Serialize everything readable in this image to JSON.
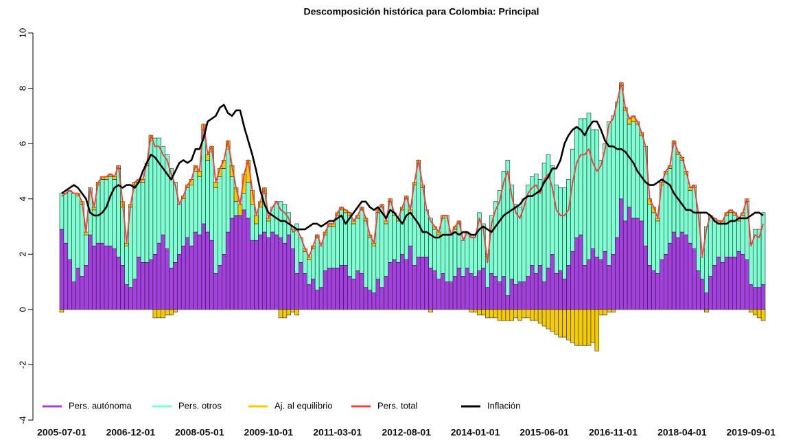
{
  "chart_data": {
    "type": "bar",
    "stacked": true,
    "title": "Descomposición histórica para Colombia: Principal",
    "categories": [
      "2005-07-01",
      null,
      null,
      null,
      null,
      null,
      null,
      null,
      null,
      null,
      null,
      null,
      null,
      null,
      null,
      null,
      null,
      "2006-12-01",
      null,
      null,
      null,
      null,
      null,
      null,
      null,
      null,
      null,
      null,
      null,
      null,
      null,
      null,
      null,
      null,
      "2008-05-01",
      null,
      null,
      null,
      null,
      null,
      null,
      null,
      null,
      null,
      null,
      null,
      null,
      null,
      null,
      null,
      null,
      "2009-10-01",
      null,
      null,
      null,
      null,
      null,
      null,
      null,
      null,
      null,
      null,
      null,
      null,
      null,
      null,
      null,
      null,
      "2011-03-01",
      null,
      null,
      null,
      null,
      null,
      null,
      null,
      null,
      null,
      null,
      null,
      null,
      null,
      null,
      null,
      null,
      "2012-08-01",
      null,
      null,
      null,
      null,
      null,
      null,
      null,
      null,
      null,
      null,
      null,
      null,
      null,
      null,
      null,
      null,
      "2014-01-01",
      null,
      null,
      null,
      null,
      null,
      null,
      null,
      null,
      null,
      null,
      null,
      null,
      null,
      null,
      null,
      null,
      "2015-06-01",
      null,
      null,
      null,
      null,
      null,
      null,
      null,
      null,
      null,
      null,
      null,
      null,
      null,
      null,
      null,
      null,
      "2016-11-01",
      null,
      null,
      null,
      null,
      null,
      null,
      null,
      null,
      null,
      null,
      null,
      null,
      null,
      null,
      null,
      null,
      "2018-04-01",
      null,
      null,
      null,
      null,
      null,
      null,
      null,
      null,
      null,
      null,
      null,
      null,
      null,
      null,
      null,
      null,
      "2019-09-01",
      null,
      null,
      null
    ],
    "ylim": [
      -4,
      10
    ],
    "yticks": [
      -4,
      -2,
      0,
      2,
      4,
      6,
      8,
      10
    ],
    "grid": false,
    "legend": "bottomleft",
    "series": [
      {
        "name": "Pers. autónoma",
        "type": "bar",
        "color": "#a43fe0",
        "values": [
          2.9,
          2.4,
          1.8,
          1.0,
          1.5,
          1.2,
          1.6,
          2.7,
          2.3,
          2.4,
          2.4,
          2.3,
          2.3,
          2.2,
          1.9,
          1.6,
          0.9,
          0.8,
          1.1,
          1.9,
          1.7,
          1.7,
          1.8,
          2.0,
          2.4,
          2.7,
          2.2,
          1.5,
          1.7,
          2.0,
          2.3,
          2.6,
          2.3,
          2.8,
          2.7,
          3.1,
          2.8,
          2.5,
          1.3,
          1.6,
          2.0,
          2.8,
          3.3,
          3.4,
          3.4,
          3.6,
          3.3,
          2.5,
          2.5,
          2.7,
          2.8,
          2.6,
          2.8,
          2.7,
          2.6,
          2.4,
          2.7,
          2.2,
          1.3,
          1.7,
          1.3,
          0.9,
          1.1,
          0.7,
          0.8,
          1.4,
          1.5,
          1.5,
          1.5,
          1.6,
          1.6,
          1.2,
          1.1,
          1.4,
          1.3,
          0.8,
          0.7,
          0.6,
          1.1,
          0.8,
          1.2,
          1.7,
          1.8,
          1.7,
          2.0,
          1.8,
          2.3,
          1.6,
          1.9,
          1.9,
          1.9,
          1.5,
          1.4,
          1.1,
          1.3,
          1.0,
          1.0,
          1.2,
          1.5,
          1.2,
          1.5,
          1.3,
          1.2,
          1.4,
          1.5,
          0.8,
          1.3,
          1.2,
          1.0,
          1.2,
          0.5,
          1.1,
          0.9,
          1.0,
          1.0,
          1.2,
          1.6,
          1.3,
          1.6,
          1.0,
          1.5,
          2.0,
          1.3,
          1.4,
          1.1,
          1.6,
          2.1,
          2.6,
          2.7,
          1.6,
          1.8,
          2.2,
          1.9,
          1.8,
          2.1,
          1.6,
          2.0,
          2.6,
          4.0,
          3.2,
          3.7,
          3.3,
          3.3,
          3.2,
          2.3,
          1.6,
          1.4,
          1.3,
          1.8,
          2.0,
          2.4,
          2.8,
          2.6,
          2.8,
          2.7,
          2.4,
          2.2,
          1.4,
          1.1,
          0.6,
          1.2,
          1.6,
          1.9,
          1.7,
          1.9,
          1.9,
          1.9,
          2.1,
          2.0,
          1.8,
          0.9,
          0.8,
          0.8,
          0.9
        ]
      },
      {
        "name": "Pers. otros",
        "type": "bar",
        "color": "#7fffd4",
        "values": [
          1.3,
          1.8,
          2.5,
          3.2,
          2.6,
          2.6,
          1.1,
          1.7,
          1.3,
          2.1,
          2.3,
          2.4,
          2.5,
          2.5,
          3.2,
          2.1,
          1.4,
          2.9,
          3.4,
          2.7,
          2.9,
          3.5,
          4.3,
          4.2,
          3.8,
          3.2,
          3.4,
          3.6,
          2.9,
          1.8,
          1.7,
          1.8,
          2.2,
          2.2,
          2.1,
          3.4,
          2.6,
          3.2,
          3.1,
          3.2,
          3.1,
          3.0,
          1.5,
          0.5,
          0.0,
          0.6,
          1.3,
          1.3,
          0.6,
          1.0,
          1.4,
          0.6,
          0.9,
          1.2,
          1.3,
          1.4,
          0.8,
          0.7,
          1.8,
          0.9,
          0.8,
          0.9,
          1.1,
          1.9,
          1.5,
          1.3,
          1.5,
          1.5,
          1.9,
          2.0,
          1.9,
          2.2,
          2.0,
          1.9,
          2.3,
          2.4,
          1.9,
          1.7,
          2.4,
          2.9,
          1.9,
          2.2,
          1.6,
          1.5,
          1.6,
          2.2,
          1.2,
          2.9,
          3.4,
          2.5,
          1.7,
          1.8,
          1.5,
          1.6,
          2.0,
          2.4,
          1.7,
          1.7,
          1.6,
          1.3,
          1.3,
          1.4,
          1.5,
          2.1,
          1.6,
          1.2,
          2.1,
          2.7,
          3.3,
          3.8,
          4.9,
          3.4,
          2.9,
          2.7,
          3.0,
          3.3,
          3.2,
          3.6,
          3.1,
          4.3,
          4.1,
          3.2,
          3.2,
          3.0,
          3.3,
          3.1,
          3.7,
          4.0,
          4.2,
          5.3,
          5.3,
          4.3,
          4.6,
          3.6,
          3.9,
          5.2,
          5.0,
          4.9,
          4.1,
          4.0,
          3.0,
          3.5,
          3.4,
          3.1,
          3.6,
          2.2,
          2.1,
          1.9,
          2.7,
          2.9,
          2.7,
          3.2,
          3.0,
          2.6,
          2.2,
          1.9,
          2.2,
          2.1,
          0.8,
          2.4,
          2.2,
          1.7,
          1.2,
          1.4,
          1.5,
          1.6,
          1.5,
          1.1,
          1.4,
          2.1,
          1.5,
          2.1,
          2.1,
          2.6
        ]
      },
      {
        "name": "Aj. al equilibrio",
        "type": "bar",
        "color": "#f5cc00",
        "values": [
          -0.1,
          0,
          0,
          0,
          0.1,
          0.1,
          0.1,
          0,
          0.1,
          0.1,
          0.1,
          0.1,
          0.1,
          0.1,
          0.1,
          0.2,
          0.1,
          0.1,
          0.1,
          0.1,
          0.1,
          0.1,
          0.2,
          -0.3,
          -0.3,
          -0.3,
          -0.2,
          -0.2,
          -0.1,
          0,
          0.1,
          0.1,
          0.2,
          0.2,
          0.2,
          0.2,
          0.2,
          0.2,
          0.2,
          0.3,
          0.3,
          0.3,
          0.4,
          0.5,
          0.4,
          0.7,
          0.8,
          0.5,
          0.3,
          0.2,
          0.2,
          0.1,
          0,
          0,
          -0.3,
          -0.3,
          -0.2,
          -0.1,
          -0.2,
          0,
          0.1,
          0.1,
          0.1,
          0.1,
          0,
          0.1,
          0.1,
          0.1,
          0.1,
          0.1,
          0.1,
          0.1,
          0.1,
          0.1,
          0.1,
          0.1,
          0.1,
          0.1,
          0.1,
          0.1,
          0.1,
          0.1,
          0.1,
          0.1,
          0.1,
          0.1,
          0.1,
          0.1,
          0.1,
          0.1,
          0,
          -0.1,
          0.1,
          0.1,
          0.1,
          0,
          0,
          0.1,
          0.1,
          0,
          0,
          -0.1,
          -0.1,
          -0.2,
          -0.2,
          -0.3,
          -0.3,
          -0.3,
          -0.4,
          -0.4,
          -0.4,
          -0.4,
          -0.3,
          -0.4,
          -0.3,
          -0.3,
          -0.4,
          -0.4,
          -0.5,
          -0.6,
          -0.7,
          -0.8,
          -0.9,
          -1.0,
          -1.0,
          -1.1,
          -1.2,
          -1.3,
          -1.3,
          -1.3,
          -1.3,
          -1.2,
          -1.5,
          -0.2,
          -0.2,
          -0.1,
          -0.1,
          0,
          0.1,
          0.1,
          0.2,
          0.2,
          0.1,
          0.1,
          0,
          0.2,
          0.2,
          0.1,
          0.1,
          0.1,
          0.1,
          0.1,
          0.1,
          0.1,
          0.1,
          0.1,
          0.1,
          0,
          0,
          -0.1,
          0,
          0,
          0.1,
          0.1,
          0.1,
          0.1,
          0.1,
          0.1,
          0.1,
          0.1,
          -0.1,
          -0.2,
          -0.3,
          -0.4
        ]
      },
      {
        "name": "Pers. total",
        "type": "line",
        "color": "#e8473c",
        "values": [
          4.1,
          4.2,
          4.3,
          4.2,
          4.2,
          3.9,
          2.8,
          4.4,
          3.7,
          4.6,
          4.8,
          4.8,
          4.9,
          4.8,
          5.2,
          3.9,
          2.4,
          3.8,
          4.6,
          4.7,
          4.7,
          5.3,
          6.3,
          5.9,
          5.9,
          5.6,
          5.4,
          4.9,
          4.5,
          3.8,
          4.1,
          4.5,
          4.7,
          5.2,
          5.0,
          6.7,
          5.6,
          5.9,
          4.6,
          5.1,
          5.4,
          6.1,
          5.2,
          4.4,
          3.8,
          4.9,
          5.4,
          4.3,
          3.4,
          3.9,
          4.4,
          3.3,
          3.7,
          3.9,
          3.6,
          3.5,
          3.3,
          2.8,
          2.9,
          2.6,
          2.2,
          1.9,
          2.3,
          2.7,
          2.3,
          2.8,
          3.1,
          3.1,
          3.5,
          3.7,
          3.6,
          3.5,
          3.2,
          3.4,
          3.7,
          3.3,
          2.7,
          2.4,
          3.6,
          3.8,
          3.2,
          4.0,
          3.5,
          3.3,
          3.7,
          4.1,
          3.6,
          4.6,
          5.4,
          4.5,
          3.6,
          3.2,
          3.0,
          2.8,
          3.4,
          3.4,
          2.7,
          3.0,
          3.2,
          2.5,
          2.8,
          2.6,
          2.6,
          3.3,
          2.9,
          1.7,
          3.1,
          3.6,
          3.9,
          4.6,
          5.0,
          4.1,
          3.5,
          3.3,
          3.7,
          4.2,
          4.4,
          4.5,
          4.2,
          4.7,
          4.9,
          4.4,
          3.6,
          3.4,
          3.4,
          3.6,
          4.6,
          5.3,
          5.6,
          5.6,
          5.8,
          5.3,
          5.0,
          5.2,
          5.8,
          6.7,
          6.9,
          7.5,
          8.2,
          7.3,
          6.9,
          7.0,
          6.8,
          6.4,
          5.9,
          4.0,
          3.7,
          3.3,
          4.6,
          5.0,
          5.2,
          6.1,
          5.7,
          5.5,
          5.0,
          4.4,
          4.5,
          3.5,
          1.9,
          2.9,
          3.4,
          3.3,
          3.2,
          3.2,
          3.5,
          3.6,
          3.5,
          3.3,
          3.5,
          4.0,
          2.3,
          2.7,
          2.6,
          3.1
        ]
      },
      {
        "name": "Inflación",
        "type": "line",
        "color": "#000000",
        "values": [
          4.2,
          4.3,
          4.4,
          4.5,
          4.4,
          4.2,
          4.0,
          3.5,
          3.4,
          3.4,
          3.5,
          3.7,
          4.1,
          4.4,
          4.5,
          4.4,
          4.5,
          4.5,
          4.4,
          4.6,
          5.0,
          5.3,
          5.6,
          5.5,
          5.3,
          5.1,
          4.9,
          4.7,
          5.0,
          5.3,
          5.4,
          5.3,
          5.4,
          5.8,
          5.8,
          6.2,
          6.8,
          6.9,
          7.0,
          7.3,
          7.4,
          7.1,
          7.0,
          7.2,
          7.2,
          6.6,
          6.1,
          5.6,
          5.0,
          4.3,
          3.8,
          3.5,
          3.4,
          3.3,
          3.2,
          3.2,
          3.1,
          3.0,
          2.9,
          2.9,
          2.9,
          3.0,
          3.1,
          3.1,
          3.0,
          3.1,
          3.2,
          3.2,
          3.3,
          3.4,
          3.1,
          3.3,
          3.5,
          3.7,
          3.9,
          3.9,
          3.7,
          3.6,
          3.7,
          3.5,
          3.3,
          3.6,
          3.5,
          3.3,
          3.1,
          3.4,
          3.5,
          3.3,
          3.1,
          2.8,
          2.8,
          2.7,
          2.6,
          2.6,
          2.7,
          2.7,
          2.7,
          2.8,
          2.7,
          2.8,
          2.8,
          2.7,
          2.7,
          2.9,
          3.0,
          2.9,
          2.8,
          3.0,
          3.2,
          3.4,
          3.5,
          3.6,
          3.7,
          3.8,
          4.0,
          4.1,
          4.1,
          4.2,
          4.3,
          4.6,
          4.8,
          5.1,
          5.1,
          5.4,
          6.0,
          6.3,
          6.5,
          6.6,
          6.5,
          6.3,
          6.6,
          6.8,
          6.8,
          6.5,
          6.1,
          5.9,
          5.9,
          5.8,
          5.8,
          5.7,
          5.5,
          5.3,
          5.0,
          4.8,
          4.6,
          4.5,
          4.5,
          4.6,
          4.7,
          4.6,
          4.5,
          4.2,
          4.0,
          3.8,
          3.6,
          3.6,
          3.5,
          3.5,
          3.5,
          3.5,
          3.4,
          3.2,
          3.1,
          3.1,
          3.1,
          3.2,
          3.2,
          3.3,
          3.3,
          3.3,
          3.4,
          3.5,
          3.5,
          3.4
        ]
      }
    ]
  }
}
